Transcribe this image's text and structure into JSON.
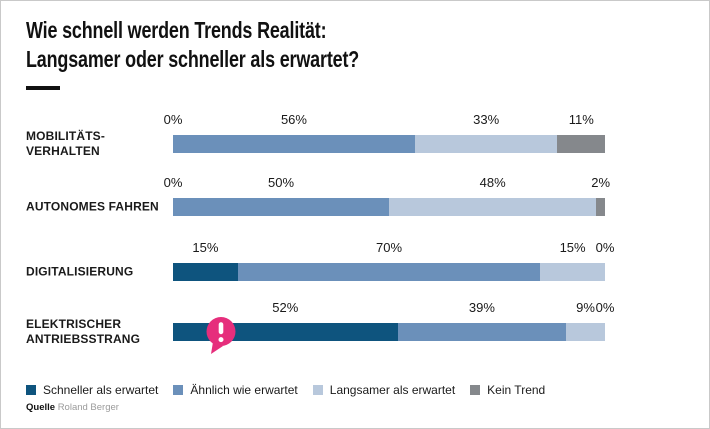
{
  "title": {
    "line1": "Wie schnell werden Trends Realität:",
    "line2": "Langsamer oder schneller als erwartet?"
  },
  "source": {
    "label": "Quelle",
    "value": "Roland Berger"
  },
  "colors": {
    "faster": "#0e547e",
    "similar": "#6b90ba",
    "slower": "#b8c8dc",
    "none": "#85888c",
    "alert": "#e62e7c",
    "text": "#1a1a1a",
    "title_text": "#111111",
    "source_gray": "#9b9b9b",
    "border": "#c9c9c9"
  },
  "legend": [
    {
      "key": "faster",
      "label": "Schneller als erwartet"
    },
    {
      "key": "similar",
      "label": "Ähnlich wie erwartet"
    },
    {
      "key": "slower",
      "label": "Langsamer als erwartet"
    },
    {
      "key": "none",
      "label": "Kein Trend"
    }
  ],
  "chart_data": {
    "type": "bar",
    "orientation": "horizontal-stacked",
    "unit": "%",
    "xlim": [
      0,
      100
    ],
    "grid": false,
    "legend_position": "bottom",
    "title": "Wie schnell werden Trends Realität: Langsamer oder schneller als erwartet?",
    "series_keys": [
      "faster",
      "similar",
      "slower",
      "none"
    ],
    "series_labels": [
      "Schneller als erwartet",
      "Ähnlich wie erwartet",
      "Langsamer als erwartet",
      "Kein Trend"
    ],
    "categories": [
      "MOBILITÄTS-VERHALTEN",
      "AUTONOMES FAHREN",
      "DIGITALISIERUNG",
      "ELEKTRISCHER ANTRIEBSSTRANG"
    ],
    "rows": [
      {
        "category_lines": [
          "MOBILITÄTS-",
          "VERHALTEN"
        ],
        "values": [
          0,
          56,
          33,
          11
        ],
        "value_labels": [
          "0%",
          "56%",
          "33%",
          "11%"
        ],
        "alert": false
      },
      {
        "category_lines": [
          "AUTONOMES FAHREN"
        ],
        "values": [
          0,
          50,
          48,
          2
        ],
        "value_labels": [
          "0%",
          "50%",
          "48%",
          "2%"
        ],
        "alert": false
      },
      {
        "category_lines": [
          "DIGITALISIERUNG"
        ],
        "values": [
          15,
          70,
          15,
          0
        ],
        "value_labels": [
          "15%",
          "70%",
          "15%",
          "0%"
        ],
        "alert": false
      },
      {
        "category_lines": [
          "ELEKTRISCHER",
          "ANTRIEBSSTRANG"
        ],
        "values": [
          52,
          39,
          9,
          0
        ],
        "value_labels": [
          "52%",
          "39%",
          "9%",
          "0%"
        ],
        "alert": true,
        "alert_icon": "exclamation"
      }
    ]
  }
}
